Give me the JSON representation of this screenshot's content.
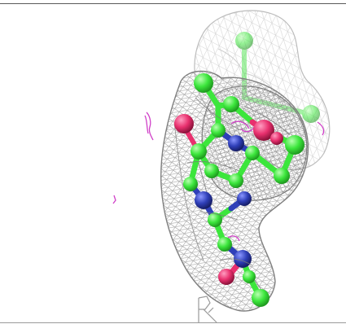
{
  "scene": {
    "background": "#ffffff",
    "mesh_color": "#8c8c8c",
    "mesh_color_faint": "#c9c9c9",
    "carbon_color": "#3cf03c",
    "nitrogen_color": "#2f3fb8",
    "oxygen_color": "#e8306e",
    "difference_map_color": "#d040c8",
    "corner_mark_glyph": "R"
  }
}
